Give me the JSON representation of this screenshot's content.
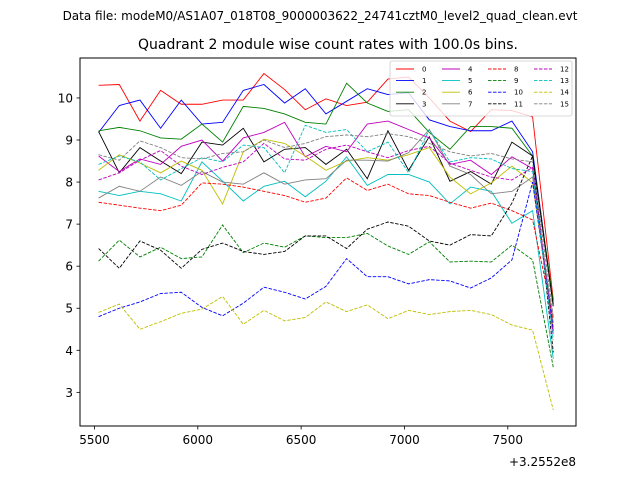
{
  "header": {
    "data_file": "Data file: modeM0/AS1A07_018T08_9000003622_24741cztM0_level2_quad_clean.evt"
  },
  "chart_data": {
    "type": "line",
    "title": "Quadrant 2 module wise count rates with 100.0s bins.",
    "xlabel": "",
    "ylabel": "",
    "x_offset_label": "+3.2552e8",
    "xlim": [
      5430,
      7830
    ],
    "ylim": [
      2.2,
      10.95
    ],
    "xticks": [
      5500,
      6000,
      6500,
      7000,
      7500
    ],
    "yticks": [
      3,
      4,
      5,
      6,
      7,
      8,
      9,
      10
    ],
    "grid": false,
    "legend_position": "top-right",
    "x": [
      5520,
      5620,
      5720,
      5820,
      5920,
      6020,
      6120,
      6220,
      6320,
      6420,
      6520,
      6620,
      6720,
      6820,
      6920,
      7020,
      7120,
      7220,
      7320,
      7420,
      7520,
      7620,
      7720
    ],
    "series": [
      {
        "name": "0",
        "color": "#ff0000",
        "dash": "solid",
        "values": [
          10.3,
          10.32,
          9.45,
          10.18,
          9.85,
          9.85,
          9.95,
          9.95,
          10.58,
          10.2,
          9.72,
          9.98,
          9.82,
          9.9,
          10.45,
          10.5,
          10.0,
          9.45,
          9.2,
          9.72,
          9.7,
          9.55,
          5.2
        ]
      },
      {
        "name": "1",
        "color": "#0000ff",
        "dash": "solid",
        "values": [
          9.18,
          9.82,
          9.95,
          9.28,
          9.95,
          9.38,
          9.42,
          10.18,
          10.32,
          9.88,
          10.22,
          9.62,
          9.92,
          10.22,
          10.08,
          10.12,
          9.48,
          9.32,
          9.22,
          9.22,
          9.45,
          8.72,
          5.1
        ]
      },
      {
        "name": "2",
        "color": "#008000",
        "dash": "solid",
        "values": [
          9.22,
          9.3,
          9.22,
          9.05,
          9.02,
          9.38,
          8.95,
          9.8,
          9.75,
          9.62,
          9.42,
          9.38,
          10.35,
          9.88,
          9.68,
          9.72,
          9.18,
          8.78,
          9.32,
          9.32,
          9.28,
          8.62,
          5.15
        ]
      },
      {
        "name": "3",
        "color": "#000000",
        "dash": "solid",
        "values": [
          9.2,
          8.22,
          8.82,
          8.5,
          8.2,
          8.95,
          8.88,
          9.28,
          8.48,
          8.78,
          8.82,
          8.42,
          8.78,
          8.08,
          9.22,
          8.28,
          9.08,
          8.02,
          8.25,
          7.95,
          8.95,
          8.62,
          5.05
        ]
      },
      {
        "name": "4",
        "color": "#bf00bf",
        "dash": "solid",
        "values": [
          8.62,
          8.25,
          8.55,
          8.42,
          8.85,
          9.0,
          8.5,
          9.05,
          9.18,
          9.42,
          8.6,
          8.85,
          8.72,
          9.38,
          9.45,
          9.25,
          9.05,
          8.42,
          8.52,
          8.18,
          8.6,
          8.32,
          4.45
        ]
      },
      {
        "name": "5",
        "color": "#00bfbf",
        "dash": "solid",
        "values": [
          7.78,
          7.68,
          7.78,
          7.72,
          7.55,
          8.48,
          8.02,
          7.55,
          7.9,
          8.02,
          7.65,
          8.02,
          8.6,
          7.92,
          8.18,
          8.18,
          8.0,
          7.48,
          7.88,
          7.78,
          7.02,
          7.32,
          3.8
        ]
      },
      {
        "name": "6",
        "color": "#bfbf00",
        "dash": "solid",
        "values": [
          8.28,
          8.65,
          8.45,
          8.22,
          8.5,
          8.28,
          7.48,
          8.72,
          9.02,
          8.92,
          8.62,
          8.28,
          8.5,
          8.58,
          8.52,
          8.65,
          8.82,
          8.12,
          7.72,
          7.98,
          8.38,
          7.98,
          4.55
        ]
      },
      {
        "name": "7",
        "color": "#808080",
        "dash": "solid",
        "values": [
          7.62,
          7.9,
          7.78,
          8.12,
          7.92,
          8.25,
          8.0,
          7.95,
          8.22,
          7.95,
          8.05,
          8.08,
          8.52,
          8.52,
          8.5,
          8.7,
          9.25,
          8.38,
          8.18,
          7.72,
          7.78,
          8.12,
          4.65
        ]
      },
      {
        "name": "8",
        "color": "#ff0000",
        "dash": "dashed",
        "values": [
          7.52,
          7.45,
          7.38,
          7.32,
          7.45,
          7.98,
          7.95,
          7.88,
          7.78,
          7.68,
          7.52,
          7.62,
          8.1,
          7.8,
          7.95,
          7.72,
          7.68,
          7.52,
          7.38,
          7.5,
          7.32,
          7.1,
          4.75
        ]
      },
      {
        "name": "9",
        "color": "#008000",
        "dash": "dashed",
        "values": [
          6.12,
          6.62,
          6.22,
          6.45,
          6.18,
          6.22,
          6.98,
          6.32,
          6.55,
          6.45,
          6.72,
          6.68,
          6.68,
          6.78,
          6.48,
          6.28,
          6.58,
          6.1,
          6.12,
          6.1,
          6.5,
          6.15,
          3.6
        ]
      },
      {
        "name": "10",
        "color": "#0000ff",
        "dash": "dashed",
        "values": [
          4.8,
          5.0,
          5.15,
          5.35,
          5.38,
          5.02,
          4.82,
          5.12,
          5.5,
          5.38,
          5.22,
          5.52,
          6.18,
          5.75,
          5.75,
          5.58,
          5.68,
          5.65,
          5.48,
          5.72,
          6.15,
          8.0,
          4.5
        ]
      },
      {
        "name": "11",
        "color": "#000000",
        "dash": "dashed",
        "values": [
          6.42,
          5.95,
          6.6,
          6.38,
          5.95,
          6.4,
          6.55,
          6.35,
          6.28,
          6.35,
          6.72,
          6.72,
          6.42,
          6.88,
          7.05,
          6.95,
          6.6,
          6.5,
          6.75,
          6.72,
          7.5,
          8.62,
          3.95
        ]
      },
      {
        "name": "12",
        "color": "#bf00bf",
        "dash": "dashed",
        "values": [
          8.05,
          8.22,
          8.52,
          8.75,
          8.38,
          8.18,
          8.35,
          8.48,
          8.92,
          8.55,
          8.52,
          8.78,
          8.88,
          8.72,
          8.58,
          8.75,
          8.85,
          8.45,
          8.28,
          8.12,
          8.05,
          8.35,
          4.35
        ]
      },
      {
        "name": "13",
        "color": "#00bfbf",
        "dash": "dashed",
        "values": [
          8.42,
          8.62,
          8.48,
          8.05,
          8.32,
          8.58,
          8.48,
          8.88,
          8.82,
          8.22,
          9.35,
          9.18,
          9.25,
          8.72,
          8.95,
          8.22,
          9.25,
          8.48,
          8.58,
          8.55,
          8.32,
          8.25,
          4.25
        ]
      },
      {
        "name": "14",
        "color": "#bfbf00",
        "dash": "dashed",
        "values": [
          4.9,
          5.1,
          4.5,
          4.68,
          4.88,
          4.98,
          5.28,
          4.62,
          4.95,
          4.7,
          4.78,
          5.15,
          4.92,
          5.08,
          4.75,
          4.95,
          4.85,
          4.92,
          4.95,
          4.85,
          4.6,
          4.48,
          2.58
        ]
      },
      {
        "name": "15",
        "color": "#808080",
        "dash": "dashed",
        "values": [
          8.65,
          8.52,
          8.98,
          8.82,
          8.58,
          8.55,
          8.68,
          8.72,
          9.0,
          8.82,
          8.92,
          9.08,
          9.12,
          9.08,
          9.15,
          9.08,
          8.92,
          8.72,
          8.62,
          8.68,
          8.55,
          8.48,
          4.8
        ]
      }
    ]
  }
}
